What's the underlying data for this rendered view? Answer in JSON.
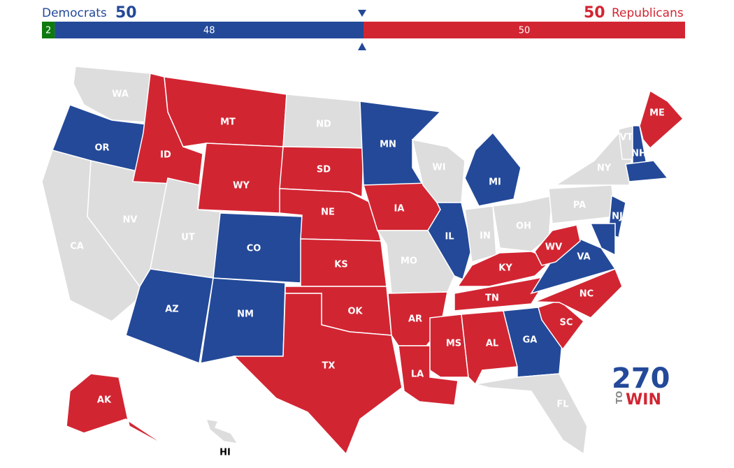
{
  "header": {
    "left_label": "Democrats",
    "left_total": "50",
    "right_total": "50",
    "right_label": "Republicans"
  },
  "party_colors": {
    "D": "#244999",
    "R": "#d22532",
    "I": "#0e7a0e",
    "T": "#dddddd"
  },
  "seats_bar": [
    {
      "party": "I",
      "value": 2
    },
    {
      "party": "D",
      "value": 48
    },
    {
      "party": "R",
      "value": 50
    }
  ],
  "states": [
    {
      "label": "WA",
      "party": "T"
    },
    {
      "label": "OR",
      "party": "D"
    },
    {
      "label": "CA",
      "party": "T"
    },
    {
      "label": "NV",
      "party": "T"
    },
    {
      "label": "ID",
      "party": "R"
    },
    {
      "label": "MT",
      "party": "R"
    },
    {
      "label": "WY",
      "party": "R"
    },
    {
      "label": "UT",
      "party": "T"
    },
    {
      "label": "AZ",
      "party": "D"
    },
    {
      "label": "CO",
      "party": "D"
    },
    {
      "label": "NM",
      "party": "D"
    },
    {
      "label": "ND",
      "party": "T"
    },
    {
      "label": "SD",
      "party": "R"
    },
    {
      "label": "NE",
      "party": "R"
    },
    {
      "label": "KS",
      "party": "R"
    },
    {
      "label": "OK",
      "party": "R"
    },
    {
      "label": "TX",
      "party": "R"
    },
    {
      "label": "MN",
      "party": "D"
    },
    {
      "label": "IA",
      "party": "R"
    },
    {
      "label": "MO",
      "party": "T"
    },
    {
      "label": "AR",
      "party": "R"
    },
    {
      "label": "LA",
      "party": "R"
    },
    {
      "label": "WI",
      "party": "T"
    },
    {
      "label": "IL",
      "party": "D"
    },
    {
      "label": "MI",
      "party": "D"
    },
    {
      "label": "IN",
      "party": "T"
    },
    {
      "label": "OH",
      "party": "T"
    },
    {
      "label": "KY",
      "party": "R"
    },
    {
      "label": "TN",
      "party": "R"
    },
    {
      "label": "MS",
      "party": "R"
    },
    {
      "label": "AL",
      "party": "R"
    },
    {
      "label": "GA",
      "party": "D"
    },
    {
      "label": "FL",
      "party": "T"
    },
    {
      "label": "SC",
      "party": "R"
    },
    {
      "label": "NC",
      "party": "R"
    },
    {
      "label": "VA",
      "party": "D"
    },
    {
      "label": "WV",
      "party": "R"
    },
    {
      "label": "PA",
      "party": "T"
    },
    {
      "label": "NY",
      "party": "T"
    },
    {
      "label": "NJ",
      "party": "D"
    },
    {
      "label": "VT",
      "party": "T"
    },
    {
      "label": "NH",
      "party": "D"
    },
    {
      "label": "ME",
      "party": "R"
    },
    {
      "label": "AK",
      "party": "R"
    },
    {
      "label": "HI",
      "party": "T"
    },
    {
      "party": "D"
    },
    {
      "party": "D"
    }
  ],
  "logo": {
    "number": "270",
    "to": "TO",
    "win": "WIN"
  }
}
